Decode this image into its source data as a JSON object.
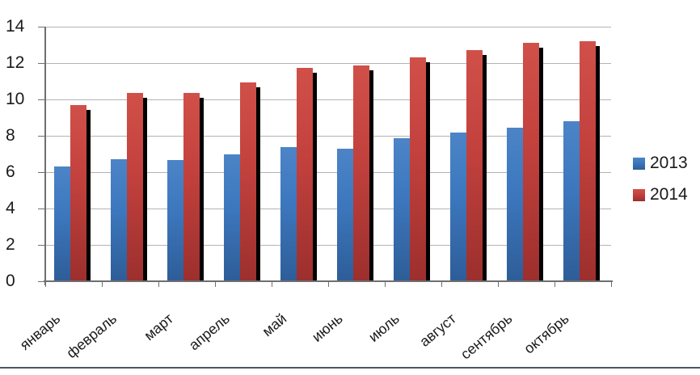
{
  "chart_data": {
    "type": "bar",
    "title": "",
    "xlabel": "",
    "ylabel": "",
    "categories": [
      "январь",
      "февраль",
      "март",
      "апрель",
      "май",
      "июнь",
      "июль",
      "август",
      "сентябрь",
      "октябрь"
    ],
    "series": [
      {
        "name": "2013",
        "color": "#3d78bf",
        "color_top": "#4c84c6",
        "color_bottom": "#2e5d98",
        "values": [
          6.3,
          6.7,
          6.65,
          7.0,
          7.4,
          7.3,
          7.85,
          8.2,
          8.45,
          8.8
        ]
      },
      {
        "name": "2014",
        "color": "#c4423e",
        "color_top": "#d05049",
        "color_bottom": "#9c2f2d",
        "values": [
          9.7,
          10.35,
          10.35,
          10.95,
          11.75,
          11.85,
          12.3,
          12.7,
          13.1,
          13.2
        ]
      }
    ],
    "ylim": [
      0,
      14
    ],
    "y_ticks": [
      0,
      2,
      4,
      6,
      8,
      10,
      12,
      14
    ],
    "grid": true,
    "legend_position": "right",
    "x_label_rotation_deg": -40,
    "bar_shadow_color": "#000000",
    "gridline_color": "#b3b3b3",
    "axis_color": "#6f6f6f",
    "label_color": "#1a1a1a",
    "bottom_divider_color": "#4c5866"
  }
}
